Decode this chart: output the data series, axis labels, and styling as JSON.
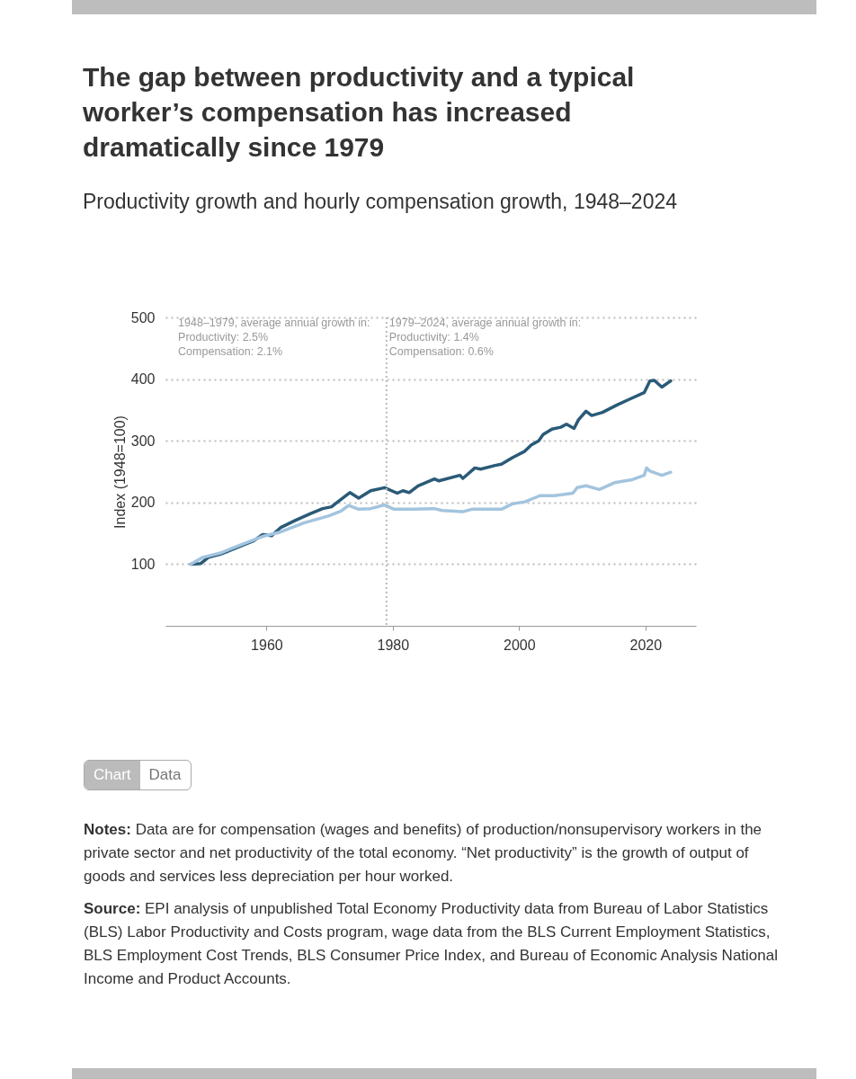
{
  "chart_data": {
    "type": "line",
    "title": "The gap between productivity and a typical worker’s compensation has increased dramatically since 1979",
    "subtitle": "Productivity growth and hourly compensation growth, 1948–2024",
    "ylabel": "Index (1948=100)",
    "xlim": [
      1944,
      2028
    ],
    "xticks": [
      1960,
      1980,
      2000,
      2020
    ],
    "ylim": [
      0,
      500
    ],
    "yticks": [
      100,
      200,
      300,
      400,
      500
    ],
    "grid": "y",
    "line_style": "solid",
    "ref_lines": [
      {
        "axis": "x",
        "value": 1979,
        "color": "#bbbbbb",
        "line_style": "dotted"
      }
    ],
    "annotations": [
      "1948–1979, average annual growth in:\nProductivity: 2.5%\nCompensation: 2.1%",
      "1979–2024, average annual growth in:\nProductivity: 1.4%\nCompensation: 0.6%",
      "Chart",
      "Data",
      "Notes: Data are for compensation (wages and benefits) of production/nonsupervisory workers in the private sector and net productivity of the total economy. “Net productivity” is the growth of output of goods and services less depreciation per hour worked.",
      "Source: EPI analysis of unpublished Total Economy Productivity data from Bureau of Labor Statistics (BLS) Labor Productivity and Costs program, wage data from the BLS Current Employment Statistics, BLS Employment Cost Trends, BLS Consumer Price Index, and Bureau of Economic Analysis National Income and Product Accounts."
    ],
    "series": [
      {
        "color": "#2a5a78",
        "x": [
          1948,
          1949.6,
          1950.8,
          1952.7,
          1955.1,
          1958,
          1959.4,
          1960.8,
          1962.2,
          1964.6,
          1967,
          1968.9,
          1970.3,
          1971.8,
          1973.2,
          1974.6,
          1976.5,
          1978.7,
          1980.7,
          1981.6,
          1982.6,
          1984,
          1986.6,
          1987.3,
          1990.6,
          1991.1,
          1993,
          1993.9,
          1996.2,
          1997.2,
          1999,
          2000.9,
          2001.9,
          2003.1,
          2003.8,
          2005.2,
          2006.6,
          2007.5,
          2008.7,
          2009.4,
          2010.6,
          2011.5,
          2013.2,
          2015.5,
          2017.4,
          2019.8,
          2020.7,
          2021.4,
          2022.6,
          2024
        ],
        "values": [
          100,
          101,
          111,
          116,
          126,
          138,
          148,
          146,
          159,
          171,
          182,
          190,
          193,
          205,
          216,
          207,
          219,
          224,
          215,
          219,
          216,
          227,
          238,
          235,
          244,
          239,
          256,
          254,
          260,
          262,
          273,
          283,
          293,
          300,
          310,
          319,
          322,
          327,
          320,
          334,
          348,
          341,
          346,
          358,
          367,
          378,
          397,
          398,
          387,
          397
        ]
      },
      {
        "color": "#a3c4de",
        "x": [
          1948,
          1949.9,
          1952.7,
          1955.6,
          1959.4,
          1962.2,
          1966,
          1969.8,
          1971.8,
          1973,
          1974.6,
          1976.5,
          1978.7,
          1980.2,
          1983.1,
          1986.6,
          1987.8,
          1991.1,
          1992.5,
          1997.2,
          1999,
          2000.9,
          2003.3,
          2005.6,
          2008.5,
          2009.2,
          2010.6,
          2012.7,
          2015.1,
          2017.9,
          2019.8,
          2020.2,
          2020.7,
          2022.6,
          2024
        ],
        "values": [
          100,
          111,
          118,
          130,
          145,
          152,
          167,
          178,
          186,
          195,
          189,
          190,
          196,
          189,
          189,
          190,
          187,
          185,
          189,
          189,
          198,
          201,
          211,
          211,
          215,
          224,
          227,
          221,
          232,
          237,
          244,
          256,
          251,
          244,
          249
        ]
      }
    ]
  }
}
